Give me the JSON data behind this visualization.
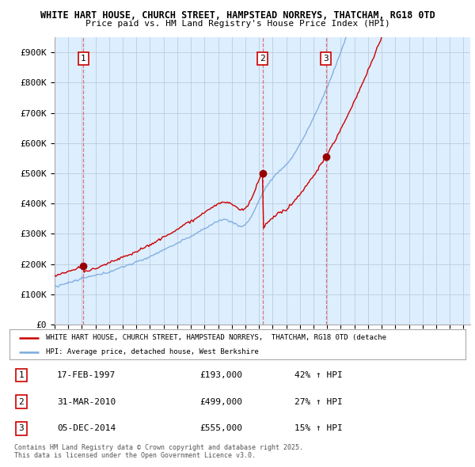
{
  "title": "WHITE HART HOUSE, CHURCH STREET, HAMPSTEAD NORREYS, THATCHAM, RG18 0TD",
  "subtitle": "Price paid vs. HM Land Registry's House Price Index (HPI)",
  "ylim": [
    0,
    950000
  ],
  "yticks": [
    0,
    100000,
    200000,
    300000,
    400000,
    500000,
    600000,
    700000,
    800000,
    900000
  ],
  "ytick_labels": [
    "£0",
    "£100K",
    "£200K",
    "£300K",
    "£400K",
    "£500K",
    "£600K",
    "£700K",
    "£800K",
    "£900K"
  ],
  "price_paid_color": "#cc0000",
  "hpi_color": "#7aaadd",
  "sale_marker_color": "#990000",
  "vline_color": "#dd6666",
  "grid_color": "#bbccdd",
  "bg_color": "#ffffff",
  "plot_bg_color": "#ddeeff",
  "sales": [
    {
      "date_num": 1997.12,
      "price": 193000,
      "label": "1"
    },
    {
      "date_num": 2010.25,
      "price": 499000,
      "label": "2"
    },
    {
      "date_num": 2014.92,
      "price": 555000,
      "label": "3"
    }
  ],
  "sale_times": [
    1997.12,
    2010.25,
    2014.92
  ],
  "sale_prices": [
    193000,
    499000,
    555000
  ],
  "legend_label_red": "WHITE HART HOUSE, CHURCH STREET, HAMPSTEAD NORREYS,  THATCHAM, RG18 0TD (detache",
  "legend_label_blue": "HPI: Average price, detached house, West Berkshire",
  "table_rows": [
    [
      "1",
      "17-FEB-1997",
      "£193,000",
      "42% ↑ HPI"
    ],
    [
      "2",
      "31-MAR-2010",
      "£499,000",
      "27% ↑ HPI"
    ],
    [
      "3",
      "05-DEC-2014",
      "£555,000",
      "15% ↑ HPI"
    ]
  ],
  "footnote": "Contains HM Land Registry data © Crown copyright and database right 2025.\nThis data is licensed under the Open Government Licence v3.0."
}
